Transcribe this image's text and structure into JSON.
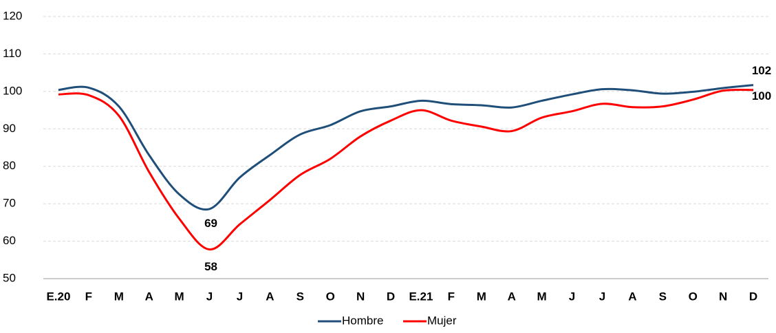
{
  "chart_data": {
    "type": "line",
    "categories": [
      "E.20",
      "F",
      "M",
      "A",
      "M",
      "J",
      "J",
      "A",
      "S",
      "O",
      "N",
      "D",
      "E.21",
      "F",
      "M",
      "A",
      "M",
      "J",
      "J",
      "A",
      "S",
      "O",
      "N",
      "D"
    ],
    "series": [
      {
        "name": "Hombre",
        "color": "#1f4e79",
        "values": [
          100.4,
          101,
          96,
          83,
          72.5,
          68.6,
          77,
          83,
          88.5,
          91,
          94.7,
          96,
          97.5,
          96.6,
          96.3,
          95.7,
          97.5,
          99.2,
          100.6,
          100.3,
          99.4,
          99.9,
          100.9,
          101.7
        ],
        "value_labels": [
          null,
          null,
          null,
          null,
          null,
          "69",
          null,
          null,
          null,
          null,
          null,
          null,
          null,
          null,
          null,
          null,
          null,
          null,
          null,
          null,
          null,
          null,
          null,
          "102"
        ]
      },
      {
        "name": "Mujer",
        "color": "#ff0000",
        "values": [
          99.2,
          99,
          93.5,
          78.5,
          66,
          57.8,
          64.5,
          71,
          77.7,
          82,
          88,
          92.2,
          95,
          92.2,
          90.6,
          89.4,
          93,
          94.7,
          96.7,
          95.8,
          96,
          97.8,
          100.2,
          100.4
        ],
        "value_labels": [
          null,
          null,
          null,
          null,
          null,
          "58",
          null,
          null,
          null,
          null,
          null,
          null,
          null,
          null,
          null,
          null,
          null,
          null,
          null,
          null,
          null,
          null,
          null,
          "100"
        ]
      }
    ],
    "ylim": [
      50,
      120
    ],
    "yticks": [
      50,
      60,
      70,
      80,
      90,
      100,
      110,
      120
    ],
    "grid": true,
    "legend": "bottom"
  }
}
